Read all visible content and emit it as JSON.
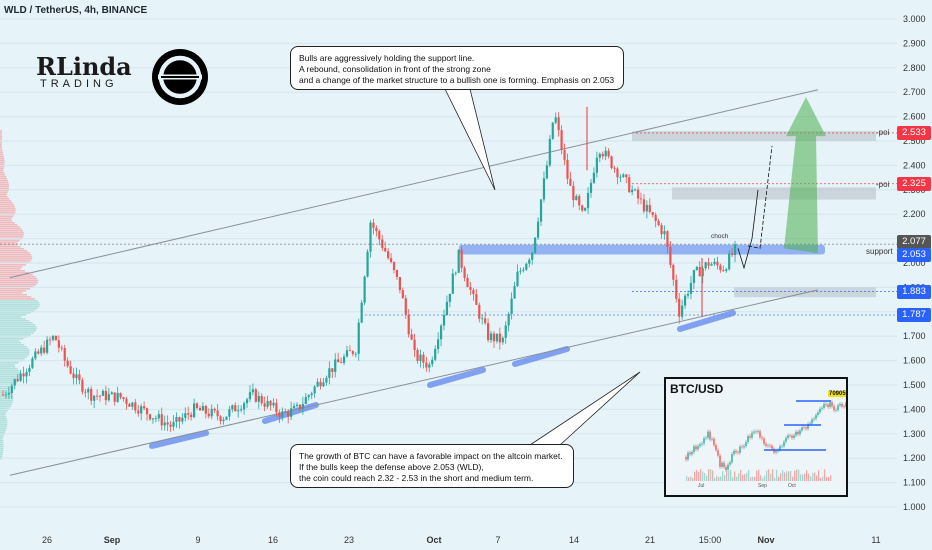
{
  "header": {
    "title": "WLD / TetherUS, 4h, BINANCE"
  },
  "logo": {
    "text": "RLinda",
    "sub": "TRADING",
    "brand_icon": "worldcoin-logo-icon"
  },
  "callouts": {
    "top": [
      "Bulls are aggressively holding the support line.",
      "A rebound, consolidation in front of the strong zone",
      "and a change of the market structure to a bullish one is forming. Emphasis on 2.053"
    ],
    "bottom": [
      "The growth of BTC can have a favorable impact on the altcoin market.",
      "If the bulls keep the defense above 2.053 (WLD),",
      "the coin could reach 2.32 - 2.53 in the short and medium term."
    ]
  },
  "labels": {
    "choch": "choch",
    "support": "support",
    "poi_top": "-poi",
    "poi_mid": "-poi"
  },
  "price_tags": [
    {
      "value": "2.533",
      "color": "#f23645"
    },
    {
      "value": "2.325",
      "color": "#f23645"
    },
    {
      "value": "2.077",
      "color": "#555555"
    },
    {
      "value": "2.053",
      "color": "#2962ff"
    },
    {
      "value": "1.883",
      "color": "#2962ff"
    },
    {
      "value": "1.787",
      "color": "#2962ff"
    }
  ],
  "inset": {
    "title": "BTC/USD",
    "price_tag": "70905",
    "axis": [
      "Jul",
      "Sep",
      "Oct"
    ]
  },
  "chart_data": {
    "type": "candlestick",
    "symbol": "WLD / TetherUS",
    "timeframe": "4h",
    "exchange": "BINANCE",
    "y_ticks": [
      "3.000",
      "2.900",
      "2.800",
      "2.700",
      "2.600",
      "2.500",
      "2.400",
      "2.300",
      "2.200",
      "2.100",
      "2.000",
      "1.900",
      "1.800",
      "1.700",
      "1.600",
      "1.500",
      "1.400",
      "1.300",
      "1.200",
      "1.100",
      "1.000"
    ],
    "ylim": [
      0.95,
      3.05
    ],
    "x_ticks": [
      "26",
      "Sep",
      "9",
      "16",
      "23",
      "Oct",
      "7",
      "14",
      "21",
      "15:00",
      "Nov",
      "11"
    ],
    "price_path": [
      [
        0,
        1.46
      ],
      [
        2,
        1.6
      ],
      [
        3.5,
        1.7
      ],
      [
        4.2,
        1.6
      ],
      [
        5,
        1.52
      ],
      [
        6,
        1.46
      ],
      [
        8,
        1.45
      ],
      [
        10,
        1.38
      ],
      [
        11.5,
        1.33
      ],
      [
        13,
        1.4
      ],
      [
        15,
        1.37
      ],
      [
        17,
        1.46
      ],
      [
        19,
        1.38
      ],
      [
        20,
        1.4
      ],
      [
        22,
        1.55
      ],
      [
        24,
        1.65
      ],
      [
        25,
        2.17
      ],
      [
        26,
        2.05
      ],
      [
        27,
        1.9
      ],
      [
        28,
        1.62
      ],
      [
        29,
        1.58
      ],
      [
        30,
        1.8
      ],
      [
        31,
        2.03
      ],
      [
        32,
        1.85
      ],
      [
        33,
        1.7
      ],
      [
        34,
        1.68
      ],
      [
        35,
        1.95
      ],
      [
        36,
        2.05
      ],
      [
        37,
        2.4
      ],
      [
        37.5,
        2.62
      ],
      [
        38.5,
        2.32
      ],
      [
        39.5,
        2.18
      ],
      [
        40.5,
        2.48
      ],
      [
        41.5,
        2.4
      ],
      [
        43,
        2.28
      ],
      [
        45,
        2.12
      ],
      [
        46,
        1.8
      ],
      [
        47,
        1.95
      ],
      [
        48,
        2.0
      ],
      [
        49,
        1.98
      ],
      [
        50,
        2.07
      ]
    ],
    "levels": {
      "support": 2.053,
      "poi_1": 2.325,
      "poi_2": 2.533,
      "level_1883": 1.883,
      "level_1787": 1.787,
      "current": 2.077
    },
    "channel": {
      "upper": [
        [
          0,
          1.94
        ],
        [
          55,
          2.71
        ]
      ],
      "lower": [
        [
          0,
          1.13
        ],
        [
          55,
          1.89
        ]
      ]
    },
    "projection": [
      [
        50,
        2.07
      ],
      [
        51,
        2.1
      ],
      [
        52,
        2.26
      ],
      [
        53,
        2.28
      ]
    ]
  },
  "colors": {
    "up": "#26a69a",
    "down": "#ef5350",
    "zone": "#9fb3ff",
    "channel": "#8a8f99"
  }
}
